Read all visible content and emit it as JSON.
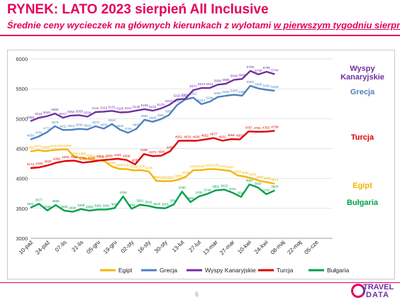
{
  "header": {
    "title": "RYNEK: LATO 2023 sierpień All Inclusive",
    "subtitle_pre": "Średnie ceny wycieczek na głównych kierunkach z wylotami ",
    "subtitle_ul": "w pierwszym tygodniu sierpnia"
  },
  "footer": {
    "page_number": "6",
    "logo_line1": "TRAVEL",
    "logo_line2": "DATA"
  },
  "colors": {
    "accent": "#e4005a"
  },
  "chart_data": {
    "type": "line",
    "title": "",
    "xlabel": "",
    "ylabel": "",
    "ylim": [
      3000,
      6000
    ],
    "yticks": [
      3000,
      3500,
      4000,
      4500,
      5000,
      5500,
      6000
    ],
    "grid": true,
    "legend": "bottom",
    "x_tick_labels": [
      "10-paź",
      "24-paź",
      "07-lis",
      "21-lis",
      "05-gru",
      "19-gru",
      "02-sty",
      "16-sty",
      "30-sty",
      "13-lut",
      "27-lut",
      "13-mar",
      "27-mar",
      "10-kwi",
      "24-kwi",
      "08-maj",
      "22-maj",
      "05-cze"
    ],
    "series": [
      {
        "name": "Egipt",
        "color": "#f5b400",
        "labels_shown": true,
        "direct_label": "Egipt",
        "values": [
          4453,
          4474,
          4459,
          4474,
          4484,
          4484,
          4350,
          4350,
          4320,
          4305,
          4290,
          4200,
          4160,
          4157,
          4135,
          4140,
          4115,
          3960,
          3955,
          3957,
          3980,
          4030,
          4139,
          4140,
          4155,
          4155,
          4141,
          4127,
          4050,
          4030,
          4000,
          3960,
          3935,
          3913
        ]
      },
      {
        "name": "Grecja",
        "color": "#4f81bd",
        "labels_shown": true,
        "direct_label": "Grecja",
        "values": [
          4653,
          4702,
          4771,
          4875,
          4811,
          4814,
          4830,
          4819,
          4873,
          4833,
          4910,
          4816,
          4764,
          4830,
          4982,
          4948,
          4991,
          5060,
          5227,
          5320,
          5351,
          5242,
          5284,
          5362,
          5383,
          5400,
          5385,
          5550,
          5506,
          5482,
          5468
        ]
      },
      {
        "name": "Wyspy Kanaryjskie",
        "color": "#7030a0",
        "labels_shown": true,
        "direct_label": "Wyspy\nKanaryjskie",
        "values": [
          4959,
          5015,
          5040,
          5086,
          5017,
          5052,
          5059,
          5034,
          5111,
          5118,
          5131,
          5105,
          5110,
          5136,
          5159,
          5133,
          5170,
          5227,
          5320,
          5331,
          5477,
          5513,
          5513,
          5568,
          5585,
          5649,
          5665,
          5799,
          5740,
          5785,
          5744
        ]
      },
      {
        "name": "Turcja",
        "color": "#e00000",
        "labels_shown": true,
        "direct_label": "Turcja",
        "values": [
          4174,
          4186,
          4220,
          4265,
          4293,
          4300,
          4265,
          4280,
          4303,
          4315,
          4331,
          4309,
          4237,
          4409,
          4373,
          4383,
          4455,
          4631,
          4633,
          4630,
          4652,
          4677,
          4632,
          4658,
          4653,
          4787,
          4781,
          4783,
          4798
        ]
      },
      {
        "name": "Bułgaria",
        "color": "#00a04a",
        "labels_shown": true,
        "direct_label": "Bułgaria",
        "values": [
          3511,
          3577,
          3465,
          3556,
          3464,
          3444,
          3489,
          3463,
          3482,
          3481,
          3506,
          3700,
          3494,
          3561,
          3542,
          3510,
          3501,
          3564,
          3780,
          3606,
          3700,
          3744,
          3802,
          3815,
          3761,
          3693,
          3901,
          3850,
          3737,
          3800
        ]
      }
    ]
  }
}
